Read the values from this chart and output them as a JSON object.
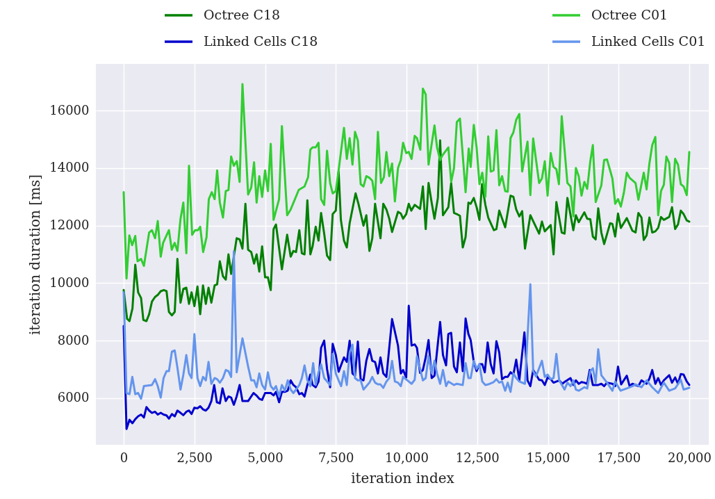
{
  "chart_data": {
    "type": "line",
    "xlabel": "iteration index",
    "ylabel": "iteration duration [ms]",
    "xlim": [
      -983,
      20688
    ],
    "ylim": [
      4380,
      17620
    ],
    "xticks": [
      0,
      {
        "value": 2500,
        "label": "2,500"
      },
      {
        "value": 5000,
        "label": "5,000"
      },
      {
        "value": 7500,
        "label": "7,500"
      },
      {
        "value": 10000,
        "label": "10,000"
      },
      {
        "value": 12500,
        "label": "12,500"
      },
      {
        "value": 15000,
        "label": "15,000"
      },
      {
        "value": 17500,
        "label": "17,500"
      },
      {
        "value": 20000,
        "label": "20,000"
      }
    ],
    "yticks": [
      6000,
      8000,
      10000,
      12000,
      14000,
      16000
    ],
    "grid": true,
    "legend": "top",
    "marker": "none",
    "line_style": "solid",
    "series": [
      {
        "name": "Octree C18",
        "color": "#008000",
        "x": [
          0,
          120,
          205,
          310,
          410,
          510,
          615,
          695,
          805,
          900,
          1000,
          1110,
          1215,
          1310,
          1420,
          1515,
          1600,
          1705,
          1805,
          1900,
          2010,
          2110,
          2215,
          2310,
          2400,
          2500,
          2610,
          2705,
          2805,
          2905,
          3000,
          3100,
          3215,
          3305,
          3400,
          3510,
          3610,
          3705,
          3800,
          3995,
          4100,
          4200,
          4305,
          4400,
          4510,
          4610,
          4700,
          4795,
          4895,
          5000,
          5100,
          5200,
          5300,
          5385,
          5595,
          5780,
          5905,
          6000,
          6095,
          6210,
          6300,
          6395,
          6495,
          6600,
          6680,
          6790,
          6890,
          6980,
          7090,
          7190,
          7300,
          7390,
          7500,
          7600,
          7680,
          7790,
          7890,
          7990,
          8200,
          8300,
          8480,
          8580,
          8690,
          8790,
          8890,
          9080,
          9180,
          9290,
          9390,
          9490,
          9700,
          9800,
          9880,
          9990,
          10080,
          10170,
          10290,
          10480,
          10580,
          10680,
          10780,
          10890,
          10990,
          11110,
          11190,
          11290,
          11480,
          11580,
          11680,
          11780,
          11890,
          11990,
          12090,
          12190,
          12270,
          12380,
          12480,
          12580,
          12670,
          12790,
          12890,
          13090,
          13180,
          13280,
          13490,
          13680,
          13780,
          13880,
          13990,
          14090,
          14190,
          14380,
          14690,
          14790,
          14890,
          15100,
          15200,
          15300,
          15490,
          15590,
          15690,
          15900,
          15990,
          16090,
          16290,
          16390,
          16500,
          16590,
          16690,
          16780,
          16890,
          16990,
          17200,
          17280,
          17380,
          17480,
          17580,
          17790,
          17990,
          18100,
          18200,
          18310,
          18390,
          18490,
          18590,
          18690,
          18800,
          18900,
          19000,
          19100,
          19290,
          19390,
          19500,
          19600,
          19700,
          19800,
          19910,
          20000
        ],
        "values": [
          9760,
          8760,
          8680,
          9120,
          10640,
          9680,
          9480,
          8720,
          8680,
          8920,
          9360,
          9520,
          9600,
          9720,
          9760,
          9720,
          9000,
          8880,
          9000,
          10840,
          9320,
          9800,
          9840,
          9280,
          9680,
          9200,
          9880,
          8920,
          9920,
          9280,
          9840,
          9320,
          9920,
          9960,
          10760,
          10240,
          10120,
          11000,
          10320,
          11560,
          11520,
          11200,
          12760,
          11160,
          11080,
          10680,
          11000,
          10400,
          11280,
          10200,
          10200,
          9760,
          11880,
          12040,
          10480,
          11680,
          10920,
          11120,
          11080,
          11840,
          11040,
          11000,
          12880,
          11000,
          11280,
          11960,
          11480,
          12440,
          11720,
          10960,
          10800,
          12400,
          12520,
          13880,
          12200,
          11480,
          11240,
          12080,
          13120,
          12760,
          12000,
          12360,
          11120,
          11560,
          12760,
          11560,
          12760,
          12560,
          12240,
          11780,
          12480,
          12420,
          12240,
          12400,
          12760,
          12520,
          12720,
          12580,
          13360,
          11880,
          13480,
          12800,
          12240,
          12960,
          14960,
          12360,
          12640,
          13480,
          12440,
          12400,
          12340,
          11240,
          11600,
          12800,
          12760,
          12960,
          12640,
          12200,
          13440,
          12720,
          12280,
          11840,
          11880,
          12520,
          11940,
          13040,
          13000,
          12560,
          12320,
          12500,
          11200,
          12360,
          11720,
          12140,
          11800,
          12020,
          11000,
          12820,
          11760,
          11720,
          12960,
          11840,
          12360,
          12120,
          12460,
          12240,
          12220,
          11620,
          11520,
          12600,
          11760,
          11360,
          12080,
          12060,
          11620,
          12420,
          11920,
          12260,
          11820,
          11760,
          12440,
          12280,
          11500,
          11660,
          12280,
          11760,
          11800,
          11920,
          12300,
          12200,
          12300,
          12640,
          11880,
          12040,
          12520,
          12400,
          12180,
          12140
        ]
      },
      {
        "name": "Linked Cells C18",
        "color": "#0000cd",
        "x": [
          0,
          100,
          205,
          310,
          410,
          510,
          615,
          715,
          805,
          900,
          1000,
          1110,
          1205,
          1310,
          1410,
          1515,
          1600,
          1705,
          1805,
          1900,
          2010,
          2110,
          2215,
          2310,
          2400,
          2500,
          2610,
          2705,
          2805,
          2905,
          3000,
          3100,
          3200,
          3295,
          3400,
          3495,
          3610,
          3705,
          3800,
          3895,
          3995,
          4100,
          4200,
          4400,
          4590,
          4690,
          4795,
          4895,
          5000,
          5100,
          5200,
          5300,
          5385,
          5495,
          5595,
          5700,
          5800,
          5905,
          6000,
          6095,
          6210,
          6300,
          6395,
          6495,
          6600,
          6680,
          6790,
          6890,
          6980,
          7090,
          7190,
          7300,
          7390,
          7500,
          7600,
          7790,
          7890,
          7990,
          8090,
          8180,
          8280,
          8380,
          8480,
          8580,
          8690,
          8790,
          8890,
          8990,
          9080,
          9180,
          9290,
          9490,
          9700,
          9800,
          9880,
          9990,
          10080,
          10180,
          10290,
          10370,
          10480,
          10580,
          10680,
          10780,
          10890,
          10990,
          11080,
          11190,
          11290,
          11400,
          11480,
          11580,
          11680,
          11780,
          11890,
          11990,
          12090,
          12190,
          12270,
          12380,
          12480,
          12580,
          12680,
          12770,
          12870,
          12980,
          13080,
          13180,
          13280,
          13380,
          13490,
          13580,
          13680,
          13780,
          13880,
          13990,
          14170,
          14280,
          14380,
          14480,
          14580,
          14690,
          14790,
          14890,
          14990,
          15100,
          15200,
          15400,
          15510,
          15610,
          15800,
          15900,
          15990,
          16090,
          16190,
          16290,
          16390,
          16480,
          16590,
          16780,
          16890,
          16990,
          17090,
          17280,
          17380,
          17480,
          17590,
          17790,
          17890,
          17990,
          18200,
          18310,
          18490,
          18590,
          18690,
          18800,
          18900,
          19000,
          19100,
          19290,
          19390,
          19500,
          19600,
          19700,
          19800,
          19910,
          20000
        ],
        "values": [
          8510,
          4930,
          5250,
          5130,
          5270,
          5370,
          5430,
          5330,
          5690,
          5570,
          5490,
          5530,
          5430,
          5490,
          5430,
          5400,
          5290,
          5450,
          5370,
          5570,
          5490,
          5410,
          5530,
          5570,
          5450,
          5670,
          5650,
          5720,
          5610,
          5570,
          5670,
          5900,
          6460,
          5860,
          5820,
          6340,
          5900,
          6060,
          6020,
          5770,
          6060,
          6460,
          5900,
          5900,
          6180,
          6100,
          5980,
          5940,
          6180,
          6180,
          6180,
          6100,
          6220,
          5860,
          6220,
          6220,
          6260,
          6620,
          6460,
          6380,
          6140,
          6180,
          6060,
          6460,
          6820,
          6460,
          6380,
          6580,
          7750,
          8000,
          7020,
          6380,
          7890,
          7500,
          6920,
          7420,
          7260,
          8000,
          6860,
          6780,
          7970,
          6660,
          6620,
          7300,
          7710,
          7300,
          7260,
          6860,
          7420,
          6860,
          6740,
          8750,
          7830,
          6860,
          6980,
          6720,
          9210,
          7830,
          7870,
          7750,
          6880,
          6980,
          7420,
          8020,
          6700,
          6780,
          7630,
          8650,
          7500,
          7140,
          8230,
          8270,
          7100,
          6900,
          7940,
          6940,
          8770,
          8230,
          8020,
          7260,
          6940,
          7180,
          7180,
          6900,
          7940,
          7180,
          6860,
          7980,
          7590,
          6660,
          6740,
          6740,
          6900,
          6820,
          7340,
          6620,
          8290,
          6620,
          6420,
          6980,
          6820,
          6640,
          6620,
          6460,
          6720,
          6660,
          6540,
          6620,
          6500,
          6580,
          6700,
          6460,
          6620,
          6500,
          6560,
          6540,
          6500,
          6980,
          6460,
          6460,
          6500,
          6420,
          6540,
          6500,
          6420,
          7100,
          6480,
          6780,
          6420,
          6500,
          6420,
          6620,
          6500,
          6680,
          6980,
          6500,
          6700,
          6460,
          6620,
          6800,
          6540,
          6720,
          6500,
          6840,
          6820,
          6580,
          6460
        ]
      },
      {
        "name": "Octree C01",
        "color": "#32cd32",
        "x": [
          0,
          100,
          200,
          300,
          410,
          490,
          615,
          715,
          900,
          1000,
          1110,
          1205,
          1310,
          1395,
          1600,
          1700,
          1800,
          1900,
          2010,
          2110,
          2215,
          2310,
          2420,
          2525,
          2625,
          2705,
          2810,
          2930,
          3010,
          3115,
          3215,
          3305,
          3400,
          3510,
          3610,
          3705,
          3800,
          3895,
          4000,
          4100,
          4200,
          4400,
          4510,
          4610,
          4700,
          4795,
          4895,
          5000,
          5100,
          5200,
          5300,
          5495,
          5595,
          5780,
          5905,
          6190,
          6395,
          6520,
          6600,
          6680,
          6790,
          6890,
          6980,
          7090,
          7190,
          7300,
          7390,
          7500,
          7600,
          7790,
          7890,
          7990,
          8090,
          8180,
          8280,
          8380,
          8480,
          8580,
          8690,
          8790,
          8890,
          8990,
          9100,
          9200,
          9290,
          9390,
          9490,
          9590,
          9700,
          9800,
          9880,
          9990,
          10080,
          10180,
          10290,
          10370,
          10490,
          10580,
          10680,
          10780,
          10990,
          11080,
          11190,
          11270,
          11480,
          11580,
          11680,
          11780,
          11890,
          12090,
          12200,
          12270,
          12380,
          12480,
          12580,
          12680,
          12790,
          12890,
          12980,
          13080,
          13180,
          13280,
          13380,
          13490,
          13580,
          13680,
          13780,
          13880,
          13990,
          14090,
          14280,
          14380,
          14480,
          14690,
          14790,
          14890,
          14990,
          15100,
          15200,
          15300,
          15390,
          15490,
          15690,
          15800,
          15900,
          15990,
          16090,
          16190,
          16290,
          16390,
          16500,
          16590,
          16690,
          16890,
          16990,
          17090,
          17280,
          17380,
          17480,
          17580,
          17690,
          17790,
          17890,
          18100,
          18200,
          18390,
          18490,
          18590,
          18690,
          18800,
          18900,
          19000,
          19100,
          19190,
          19290,
          19390,
          19500,
          19600,
          19700,
          19800,
          19910,
          20000
        ],
        "values": [
          13160,
          10160,
          11660,
          11320,
          11640,
          10760,
          10840,
          10600,
          11760,
          11840,
          11560,
          12160,
          10920,
          11400,
          11840,
          11160,
          11400,
          11120,
          12240,
          12800,
          11040,
          14080,
          11680,
          11840,
          11840,
          11960,
          11080,
          11600,
          12920,
          13160,
          12920,
          13920,
          12800,
          12280,
          13200,
          13240,
          14400,
          14080,
          14240,
          13520,
          16920,
          13080,
          13320,
          14200,
          12800,
          13720,
          13000,
          13920,
          13200,
          14840,
          12200,
          12920,
          15460,
          12360,
          12560,
          13240,
          13360,
          13680,
          14640,
          14720,
          14720,
          14880,
          12920,
          12720,
          14600,
          13480,
          13120,
          13200,
          13920,
          15400,
          14320,
          15040,
          14120,
          15260,
          14960,
          13440,
          13360,
          13720,
          13660,
          13560,
          12920,
          15260,
          13480,
          13680,
          14560,
          13720,
          14160,
          12840,
          14000,
          14280,
          14880,
          14520,
          14560,
          14320,
          15120,
          15040,
          14640,
          16760,
          16560,
          14120,
          15480,
          14720,
          14280,
          14440,
          14720,
          13520,
          14000,
          15600,
          15720,
          13160,
          14680,
          14040,
          15500,
          14720,
          13440,
          13840,
          13000,
          15100,
          13880,
          13920,
          15320,
          13400,
          13720,
          13200,
          13180,
          15040,
          15240,
          15680,
          15880,
          13880,
          14920,
          13060,
          15030,
          13480,
          13640,
          14240,
          13040,
          14520,
          14040,
          13960,
          13440,
          15800,
          13480,
          13360,
          12320,
          14000,
          13720,
          13040,
          13520,
          13280,
          14240,
          14800,
          12820,
          13400,
          14280,
          14300,
          13640,
          12760,
          12920,
          12660,
          13160,
          13840,
          13660,
          13480,
          12900,
          13840,
          13260,
          14160,
          14800,
          15080,
          12360,
          13200,
          13420,
          14400,
          14180,
          12820,
          14320,
          14120,
          13440,
          13360,
          13060,
          14560
        ]
      },
      {
        "name": "Linked Cells C01",
        "color": "#6495ed",
        "x": [
          0,
          100,
          205,
          305,
          410,
          510,
          615,
          715,
          1000,
          1110,
          1205,
          1310,
          1410,
          1515,
          1600,
          1705,
          1805,
          1900,
          2010,
          2110,
          2215,
          2310,
          2400,
          2500,
          2610,
          2705,
          2805,
          2905,
          3000,
          3100,
          3215,
          3305,
          3400,
          3510,
          3610,
          3705,
          3800,
          3895,
          3995,
          4200,
          4400,
          4510,
          4610,
          4700,
          4795,
          4895,
          5000,
          5100,
          5200,
          5300,
          5385,
          5495,
          5595,
          5700,
          5800,
          5905,
          6000,
          6095,
          6210,
          6300,
          6395,
          6495,
          6600,
          6700,
          6790,
          6890,
          6980,
          7090,
          7300,
          7390,
          7500,
          7600,
          7690,
          7790,
          7890,
          7990,
          8090,
          8180,
          8280,
          8380,
          8480,
          8690,
          8790,
          8890,
          8990,
          9080,
          9180,
          9290,
          9390,
          9490,
          9590,
          9700,
          9800,
          9880,
          10080,
          10180,
          10290,
          10370,
          10480,
          10580,
          10680,
          10780,
          10890,
          10990,
          11080,
          11190,
          11290,
          11400,
          11480,
          11680,
          11780,
          11990,
          12090,
          12190,
          12270,
          12380,
          12480,
          12580,
          12680,
          12790,
          12890,
          13080,
          13180,
          13280,
          13380,
          13490,
          13580,
          13680,
          13780,
          13880,
          13990,
          14190,
          14380,
          14480,
          14580,
          14790,
          14890,
          14990,
          15100,
          15200,
          15300,
          15400,
          15590,
          15690,
          15800,
          15900,
          15990,
          16090,
          16290,
          16390,
          16500,
          16590,
          16690,
          16780,
          16890,
          17090,
          17280,
          17380,
          17570,
          17790,
          17990,
          18100,
          18310,
          18490,
          18690,
          18900,
          19100,
          19290,
          19500,
          19700,
          19800,
          20000
        ],
        "values": [
          9680,
          6180,
          6140,
          6740,
          6140,
          6180,
          5980,
          6420,
          6460,
          6660,
          6420,
          6020,
          6700,
          6940,
          6940,
          7620,
          7660,
          7060,
          6300,
          6820,
          7500,
          6860,
          6700,
          8230,
          6700,
          6420,
          6740,
          6620,
          7260,
          6500,
          6700,
          6660,
          6540,
          6700,
          6980,
          6940,
          6740,
          11100,
          6900,
          8080,
          7100,
          6620,
          6620,
          6380,
          6860,
          6460,
          6300,
          6900,
          6420,
          6300,
          6420,
          6060,
          6460,
          6260,
          6620,
          6300,
          6180,
          6300,
          6460,
          6700,
          7140,
          6620,
          6420,
          7220,
          6460,
          6900,
          7180,
          6700,
          6460,
          7540,
          6860,
          6620,
          6420,
          6940,
          6460,
          7580,
          7860,
          6700,
          6620,
          6620,
          6300,
          6540,
          6740,
          6540,
          6480,
          6480,
          6360,
          6580,
          6700,
          7300,
          6580,
          6540,
          6420,
          6740,
          6580,
          6500,
          6640,
          7460,
          7020,
          6620,
          6700,
          7460,
          6860,
          7300,
          6860,
          6500,
          6980,
          6420,
          6580,
          6460,
          6500,
          6460,
          7220,
          6700,
          6700,
          7300,
          7020,
          7180,
          6580,
          6460,
          6480,
          6560,
          6660,
          6540,
          6580,
          6260,
          6540,
          6220,
          6860,
          6700,
          6580,
          6500,
          9960,
          6940,
          6760,
          7300,
          6740,
          6820,
          6660,
          6700,
          7540,
          6620,
          6300,
          6540,
          6420,
          6620,
          6300,
          6260,
          6380,
          6340,
          6940,
          7040,
          6540,
          7700,
          6800,
          6540,
          6260,
          6580,
          6260,
          6340,
          6420,
          6480,
          6380,
          6620,
          6380,
          6180,
          6540,
          6260,
          6340,
          6640,
          6300,
          6360
        ]
      }
    ]
  }
}
